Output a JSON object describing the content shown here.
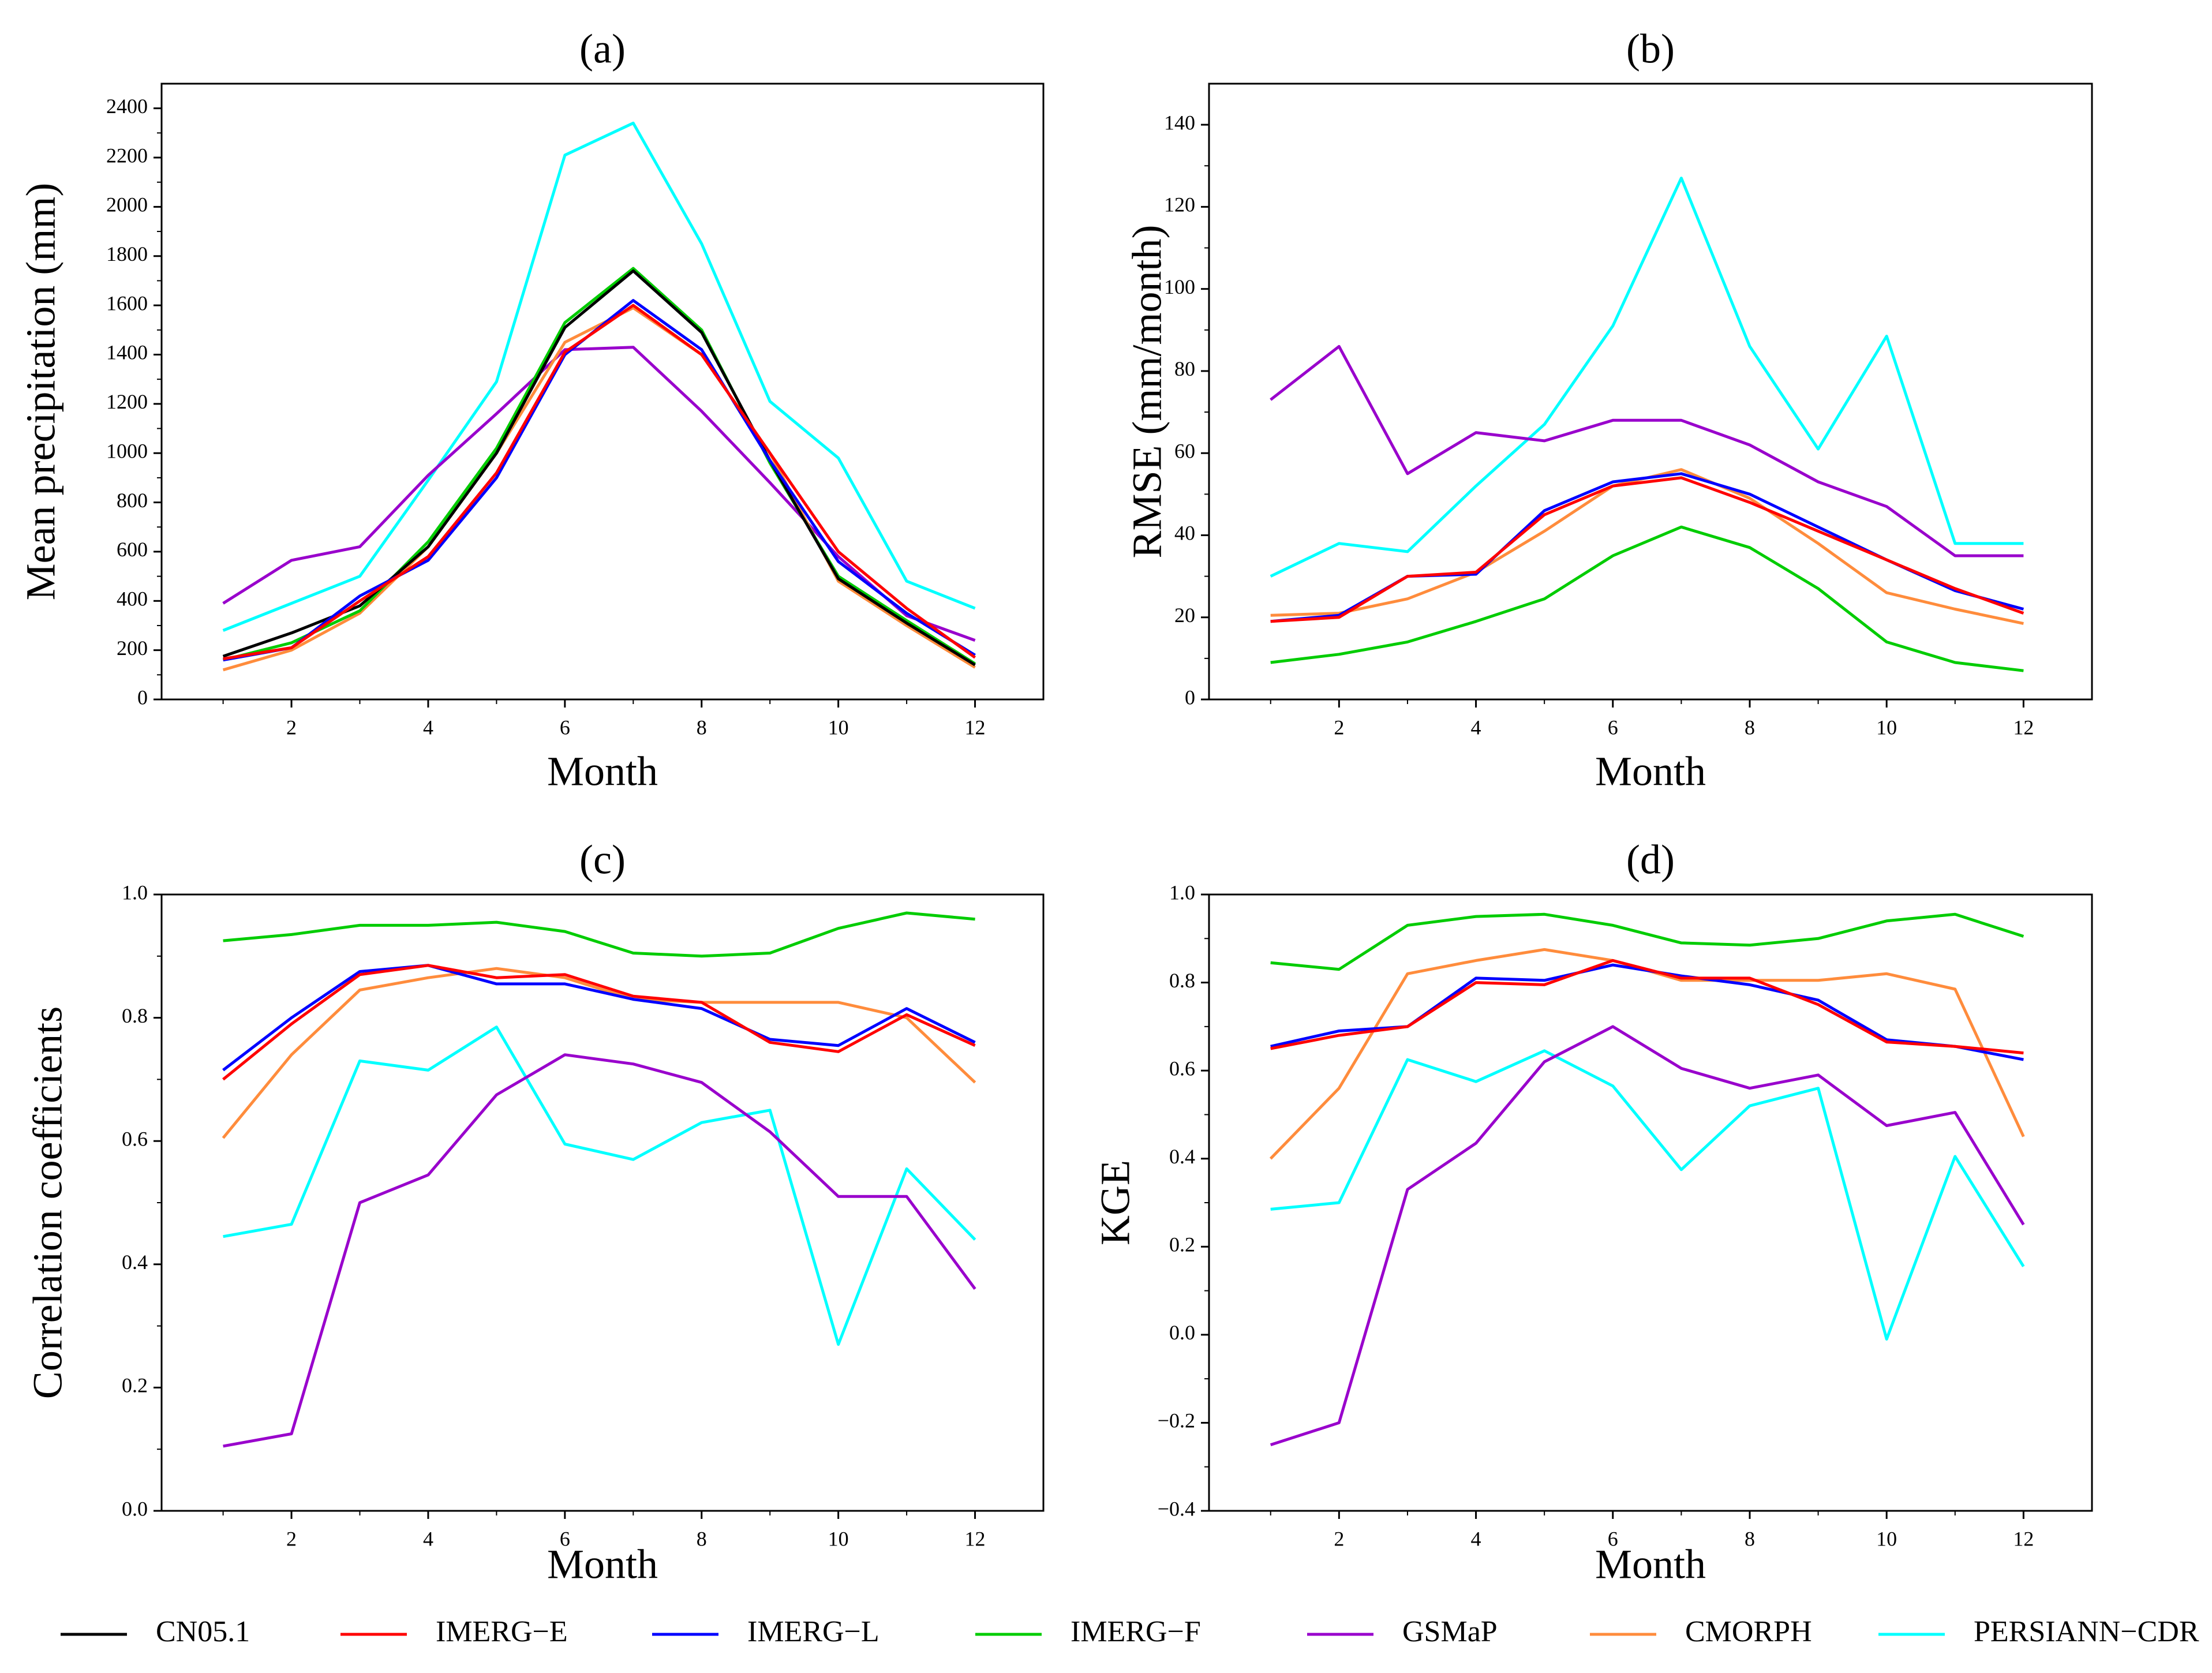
{
  "chart_data": [
    {
      "type": "line",
      "panel": "(a)",
      "title": "",
      "xlabel": "Month",
      "ylabel": "Mean precipitation (mm)",
      "x": [
        1,
        2,
        3,
        4,
        5,
        6,
        7,
        8,
        9,
        10,
        11,
        12
      ],
      "xticks": [
        2,
        4,
        6,
        8,
        10,
        12
      ],
      "xlim": [
        0.1,
        13
      ],
      "ylim": [
        0,
        2500
      ],
      "yticks": [
        0,
        200,
        400,
        600,
        800,
        1000,
        1200,
        1400,
        1600,
        1800,
        2000,
        2200,
        2400
      ],
      "ytick_labels": [
        "0",
        "200",
        "400",
        "600",
        "800",
        "1000",
        "1200",
        "1400",
        "1600",
        "1800",
        "2000",
        "2200",
        "2400"
      ],
      "series": [
        {
          "name": "CN05.1",
          "values": [
            175,
            270,
            380,
            620,
            1000,
            1510,
            1740,
            1490,
            970,
            490,
            310,
            140
          ]
        },
        {
          "name": "IMERG−E",
          "values": [
            165,
            210,
            400,
            580,
            920,
            1410,
            1600,
            1400,
            1000,
            600,
            370,
            170
          ]
        },
        {
          "name": "IMERG−L",
          "values": [
            160,
            210,
            420,
            565,
            900,
            1400,
            1620,
            1420,
            970,
            560,
            350,
            180
          ]
        },
        {
          "name": "IMERG−F",
          "values": [
            160,
            230,
            360,
            640,
            1020,
            1530,
            1750,
            1500,
            960,
            500,
            320,
            145
          ]
        },
        {
          "name": "GSMaP",
          "values": [
            390,
            565,
            620,
            910,
            1160,
            1420,
            1430,
            1170,
            880,
            580,
            340,
            240
          ]
        },
        {
          "name": "CMORPH",
          "values": [
            120,
            200,
            350,
            620,
            1000,
            1450,
            1590,
            1400,
            1000,
            480,
            300,
            130
          ]
        },
        {
          "name": "PERSIANN−CDR",
          "values": [
            280,
            390,
            500,
            890,
            1290,
            2210,
            2340,
            1850,
            1210,
            980,
            480,
            370
          ]
        }
      ]
    },
    {
      "type": "line",
      "panel": "(b)",
      "title": "",
      "xlabel": "Month",
      "ylabel": "RMSE (mm/month)",
      "x": [
        1,
        2,
        3,
        4,
        5,
        6,
        7,
        8,
        9,
        10,
        11,
        12
      ],
      "xticks": [
        2,
        4,
        6,
        8,
        10,
        12
      ],
      "xlim": [
        0.1,
        13
      ],
      "ylim": [
        0,
        150
      ],
      "yticks": [
        0,
        20,
        40,
        60,
        80,
        100,
        120,
        140
      ],
      "ytick_labels": [
        "0",
        "20",
        "40",
        "60",
        "80",
        "100",
        "120",
        "140"
      ],
      "series": [
        {
          "name": "IMERG−E",
          "values": [
            19,
            20,
            30,
            31,
            45,
            52,
            54,
            48,
            41,
            34,
            27,
            21
          ]
        },
        {
          "name": "IMERG−L",
          "values": [
            19,
            20.5,
            30,
            30.5,
            46,
            53,
            55,
            50,
            42,
            34,
            26.5,
            22
          ]
        },
        {
          "name": "IMERG−F",
          "values": [
            9,
            11,
            14,
            19,
            24.5,
            35,
            42,
            37,
            27,
            14,
            9,
            7
          ]
        },
        {
          "name": "GSMaP",
          "values": [
            73,
            86,
            55,
            65,
            63,
            68,
            68,
            62,
            53,
            47,
            35,
            35
          ]
        },
        {
          "name": "CMORPH",
          "values": [
            20.5,
            21,
            24.5,
            31,
            41,
            52,
            56,
            49,
            38,
            26,
            22,
            18.5
          ]
        },
        {
          "name": "PERSIANN−CDR",
          "values": [
            30,
            38,
            36,
            52,
            67,
            91,
            127,
            86,
            61,
            88.5,
            38,
            38
          ]
        }
      ]
    },
    {
      "type": "line",
      "panel": "(c)",
      "title": "",
      "xlabel": "Month",
      "ylabel": "Correlation coefficients",
      "x": [
        1,
        2,
        3,
        4,
        5,
        6,
        7,
        8,
        9,
        10,
        11,
        12
      ],
      "xticks": [
        2,
        4,
        6,
        8,
        10,
        12
      ],
      "xlim": [
        0.1,
        13
      ],
      "ylim": [
        0,
        1
      ],
      "yticks": [
        0,
        0.2,
        0.4,
        0.6,
        0.8,
        1.0
      ],
      "ytick_labels": [
        "0.0",
        "0.2",
        "0.4",
        "0.6",
        "0.8",
        "1.0"
      ],
      "series": [
        {
          "name": "IMERG−E",
          "values": [
            0.7,
            0.79,
            0.87,
            0.885,
            0.865,
            0.87,
            0.835,
            0.825,
            0.76,
            0.745,
            0.805,
            0.755
          ]
        },
        {
          "name": "IMERG−L",
          "values": [
            0.715,
            0.8,
            0.875,
            0.885,
            0.855,
            0.855,
            0.83,
            0.815,
            0.765,
            0.755,
            0.815,
            0.76
          ]
        },
        {
          "name": "IMERG−F",
          "values": [
            0.925,
            0.935,
            0.95,
            0.95,
            0.955,
            0.94,
            0.905,
            0.9,
            0.905,
            0.945,
            0.97,
            0.96
          ]
        },
        {
          "name": "GSMaP",
          "values": [
            0.105,
            0.125,
            0.5,
            0.545,
            0.675,
            0.74,
            0.725,
            0.695,
            0.615,
            0.51,
            0.51,
            0.36
          ]
        },
        {
          "name": "CMORPH",
          "values": [
            0.605,
            0.74,
            0.845,
            0.865,
            0.88,
            0.865,
            0.83,
            0.825,
            0.825,
            0.825,
            0.8,
            0.695
          ]
        },
        {
          "name": "PERSIANN−CDR",
          "values": [
            0.445,
            0.465,
            0.73,
            0.715,
            0.785,
            0.595,
            0.57,
            0.63,
            0.65,
            0.27,
            0.555,
            0.44
          ]
        }
      ]
    },
    {
      "type": "line",
      "panel": "(d)",
      "title": "",
      "xlabel": "Month",
      "ylabel": "KGE",
      "x": [
        1,
        2,
        3,
        4,
        5,
        6,
        7,
        8,
        9,
        10,
        11,
        12
      ],
      "xticks": [
        2,
        4,
        6,
        8,
        10,
        12
      ],
      "xlim": [
        0.1,
        13
      ],
      "ylim": [
        -0.4,
        1.0
      ],
      "yticks": [
        -0.4,
        -0.2,
        0.0,
        0.2,
        0.4,
        0.6,
        0.8,
        1.0
      ],
      "ytick_labels": [
        "−0.4",
        "−0.2",
        "0.0",
        "0.2",
        "0.4",
        "0.6",
        "0.8",
        "1.0"
      ],
      "series": [
        {
          "name": "IMERG−E",
          "values": [
            0.65,
            0.68,
            0.7,
            0.8,
            0.795,
            0.85,
            0.81,
            0.81,
            0.75,
            0.665,
            0.655,
            0.64
          ]
        },
        {
          "name": "IMERG−L",
          "values": [
            0.655,
            0.69,
            0.7,
            0.81,
            0.805,
            0.84,
            0.815,
            0.795,
            0.76,
            0.67,
            0.655,
            0.625
          ]
        },
        {
          "name": "IMERG−F",
          "values": [
            0.845,
            0.83,
            0.93,
            0.95,
            0.955,
            0.93,
            0.89,
            0.885,
            0.9,
            0.94,
            0.955,
            0.905
          ]
        },
        {
          "name": "GSMaP",
          "values": [
            -0.25,
            -0.2,
            0.33,
            0.435,
            0.62,
            0.7,
            0.605,
            0.56,
            0.59,
            0.475,
            0.505,
            0.25
          ]
        },
        {
          "name": "CMORPH",
          "values": [
            0.4,
            0.56,
            0.82,
            0.85,
            0.875,
            0.85,
            0.805,
            0.805,
            0.805,
            0.82,
            0.785,
            0.45
          ]
        },
        {
          "name": "PERSIANN−CDR",
          "values": [
            0.285,
            0.3,
            0.625,
            0.575,
            0.645,
            0.565,
            0.375,
            0.52,
            0.56,
            -0.01,
            0.405,
            0.155
          ]
        }
      ]
    }
  ],
  "legend": {
    "placement": "bottom",
    "items": [
      {
        "name": "CN05.1",
        "color": "#000000"
      },
      {
        "name": "IMERG−E",
        "color": "#ff0000"
      },
      {
        "name": "IMERG−L",
        "color": "#0000ff"
      },
      {
        "name": "IMERG−F",
        "color": "#00cc00"
      },
      {
        "name": "GSMaP",
        "color": "#9900cc"
      },
      {
        "name": "CMORPH",
        "color": "#ff8c3c"
      },
      {
        "name": "PERSIANN−CDR",
        "color": "#00ffff"
      }
    ]
  }
}
